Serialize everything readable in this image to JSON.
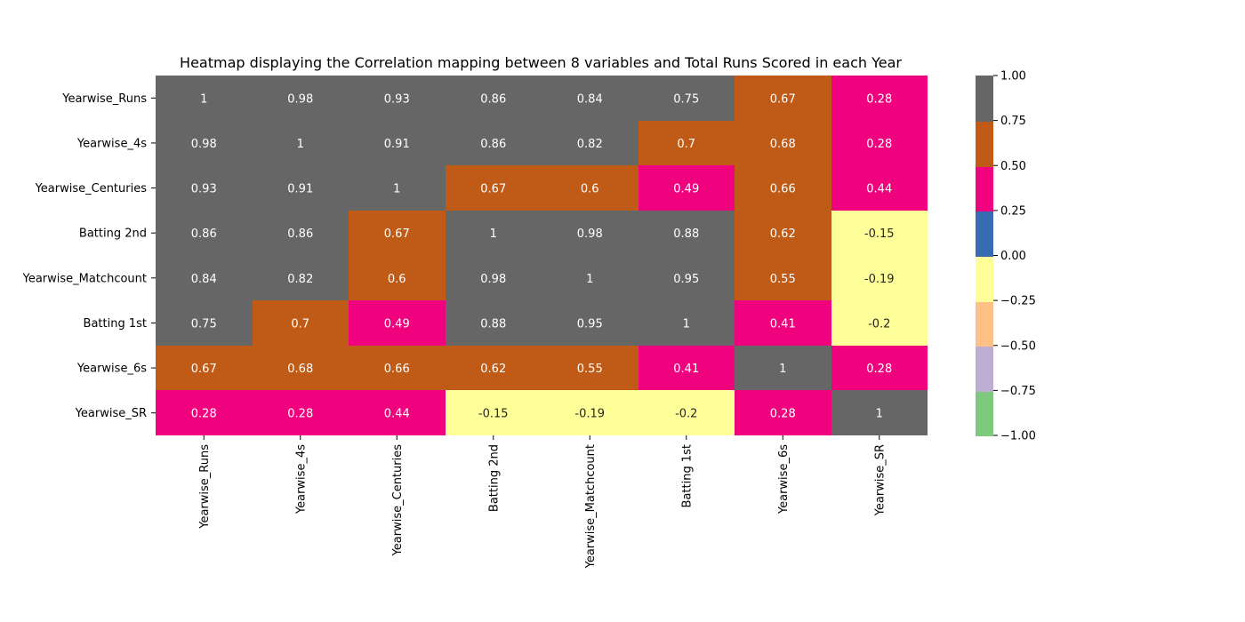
{
  "chart_data": {
    "type": "heatmap",
    "title": "Heatmap displaying the Correlation mapping between 8 variables and Total Runs Scored in each Year",
    "xlabel": "",
    "ylabel": "",
    "x_categories": [
      "Yearwise_Runs",
      "Yearwise_4s",
      "Yearwise_Centuries",
      "Batting 2nd",
      "Yearwise_Matchcount",
      "Batting 1st",
      "Yearwise_6s",
      "Yearwise_SR"
    ],
    "y_categories": [
      "Yearwise_Runs",
      "Yearwise_4s",
      "Yearwise_Centuries",
      "Batting 2nd",
      "Yearwise_Matchcount",
      "Batting 1st",
      "Yearwise_6s",
      "Yearwise_SR"
    ],
    "values": [
      [
        1,
        0.98,
        0.93,
        0.86,
        0.84,
        0.75,
        0.67,
        0.28
      ],
      [
        0.98,
        1,
        0.91,
        0.86,
        0.82,
        0.7,
        0.68,
        0.28
      ],
      [
        0.93,
        0.91,
        1,
        0.67,
        0.6,
        0.49,
        0.66,
        0.44
      ],
      [
        0.86,
        0.86,
        0.67,
        1,
        0.98,
        0.88,
        0.62,
        -0.15
      ],
      [
        0.84,
        0.82,
        0.6,
        0.98,
        1,
        0.95,
        0.55,
        -0.19
      ],
      [
        0.75,
        0.7,
        0.49,
        0.88,
        0.95,
        1,
        0.41,
        -0.2
      ],
      [
        0.67,
        0.68,
        0.66,
        0.62,
        0.55,
        0.41,
        1,
        0.28
      ],
      [
        0.28,
        0.28,
        0.44,
        -0.15,
        -0.19,
        -0.2,
        0.28,
        1
      ]
    ],
    "annotations": true,
    "colorbar": {
      "vmin": -1,
      "vmax": 1,
      "ticks": [
        "1.00",
        "0.75",
        "0.50",
        "0.25",
        "0.00",
        "−0.25",
        "−0.50",
        "−0.75",
        "−1.00"
      ],
      "colors_bottom_to_top": [
        "#7fc97f",
        "#beaed4",
        "#fdc086",
        "#ffff99",
        "#386cb0",
        "#f0027f",
        "#bf5b17",
        "#666666"
      ]
    }
  }
}
